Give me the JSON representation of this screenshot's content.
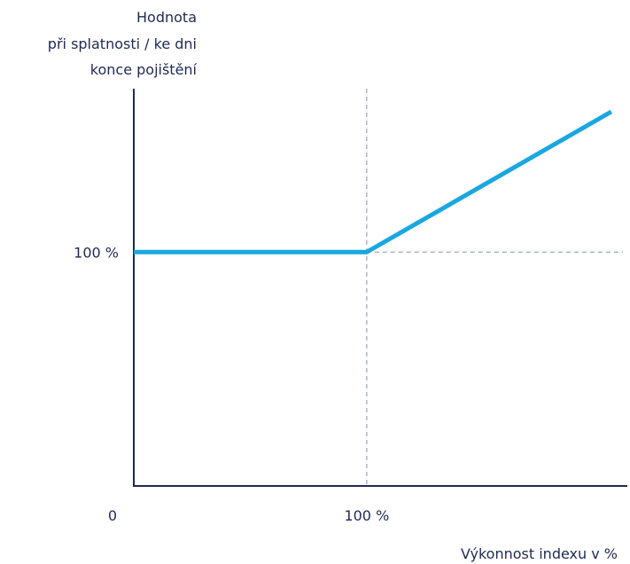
{
  "colors": {
    "axis": "#1f2a52",
    "line": "#1aa7e0",
    "guide": "#7d93b8",
    "text": "#1f2a52"
  },
  "chart_data": {
    "type": "line",
    "ylabel_lines": [
      "Hodnota",
      "při splatnosti / ke dni",
      "konce pojištění"
    ],
    "xlabel": "Výkonnost indexu v %",
    "x_origin_label": "0",
    "x_tick_label": "100 %",
    "y_tick_label": "100 %",
    "xlim": [
      0,
      210
    ],
    "ylim": [
      0,
      160
    ],
    "series": [
      {
        "points": [
          {
            "x": 0,
            "y": 100
          },
          {
            "x": 100,
            "y": 100
          },
          {
            "x": 205,
            "y": 160
          }
        ]
      }
    ],
    "guides": {
      "x": 100,
      "y": 100
    }
  }
}
